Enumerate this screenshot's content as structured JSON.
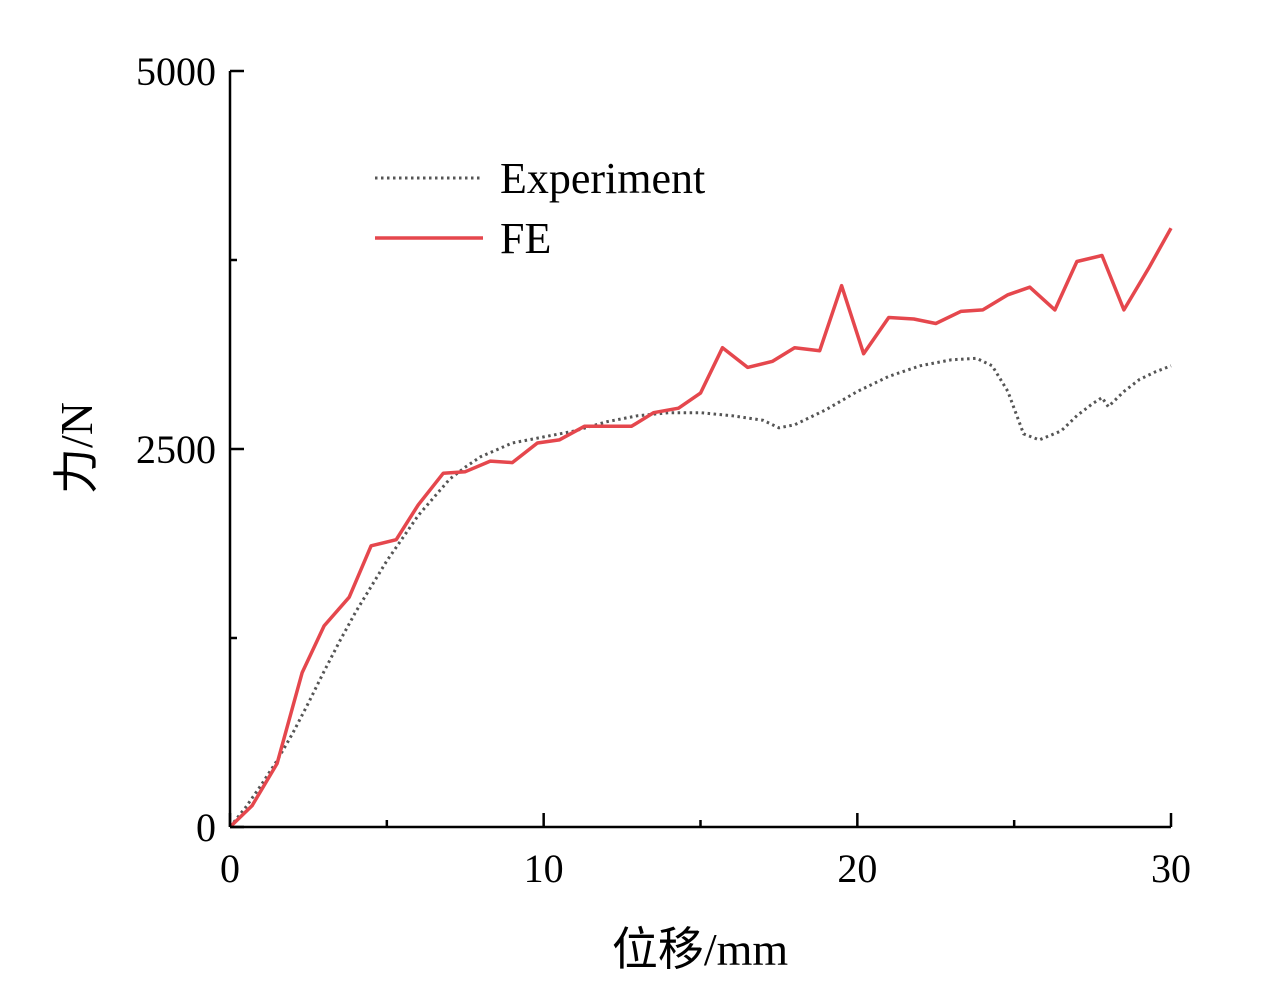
{
  "chart_data": {
    "type": "line",
    "title": "",
    "xlabel": "位移/mm",
    "ylabel": "力/N",
    "xlim": [
      0,
      30
    ],
    "ylim": [
      0,
      5000
    ],
    "x_major_ticks": [
      0,
      10,
      20,
      30
    ],
    "x_tick_labels": [
      "0",
      "10",
      "20",
      "30"
    ],
    "x_minor_ticks": [
      5,
      15,
      25
    ],
    "y_major_ticks": [
      0,
      2500,
      5000
    ],
    "y_tick_labels": [
      "0",
      "2500",
      "5000"
    ],
    "y_minor_ticks": [
      1250,
      3750
    ],
    "legend_position": "top-left",
    "series": [
      {
        "name": "Experiment",
        "style": "dotted",
        "color": "#555555",
        "x": [
          0,
          0.5,
          1,
          1.5,
          2,
          2.5,
          3,
          3.5,
          4,
          5,
          6,
          7,
          7.5,
          8,
          9,
          10,
          11,
          12,
          13,
          14,
          15,
          16,
          17,
          17.5,
          18,
          19,
          20,
          21,
          22,
          23,
          23.8,
          24.3,
          24.8,
          25.3,
          25.8,
          26.5,
          27,
          27.5,
          27.8,
          28,
          28.5,
          29,
          29.5,
          30
        ],
        "y": [
          0,
          130,
          280,
          440,
          620,
          820,
          1030,
          1230,
          1420,
          1760,
          2060,
          2300,
          2380,
          2450,
          2540,
          2580,
          2620,
          2680,
          2720,
          2740,
          2740,
          2720,
          2690,
          2640,
          2660,
          2760,
          2880,
          2980,
          3050,
          3090,
          3100,
          3050,
          2880,
          2600,
          2560,
          2620,
          2720,
          2800,
          2840,
          2780,
          2880,
          2960,
          3010,
          3050
        ]
      },
      {
        "name": "FE",
        "style": "solid",
        "color": "#e5474d",
        "x": [
          0,
          0.7,
          1.5,
          2.3,
          3,
          3.8,
          4.5,
          5.3,
          6,
          6.8,
          7.5,
          8.3,
          9,
          9.8,
          10.5,
          11.3,
          12,
          12.8,
          13.5,
          14.3,
          15,
          15.7,
          16.5,
          17.3,
          18,
          18.8,
          19.5,
          20.2,
          21,
          21.8,
          22.5,
          23.3,
          24,
          24.8,
          25.5,
          26.3,
          27,
          27.8,
          28.5,
          29.3,
          30
        ],
        "y": [
          0,
          140,
          420,
          1020,
          1330,
          1520,
          1860,
          1900,
          2130,
          2340,
          2350,
          2420,
          2410,
          2540,
          2560,
          2650,
          2650,
          2650,
          2740,
          2770,
          2870,
          3170,
          3040,
          3080,
          3170,
          3150,
          3580,
          3130,
          3370,
          3360,
          3330,
          3410,
          3420,
          3520,
          3570,
          3420,
          3740,
          3780,
          3420,
          3700,
          3960
        ]
      }
    ]
  }
}
